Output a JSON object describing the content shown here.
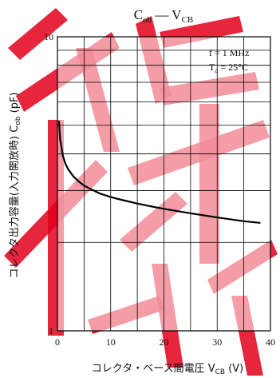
{
  "chart_data": {
    "type": "line",
    "title": {
      "main": "C",
      "main_sub": "ob",
      "sep": " — ",
      "second": "V",
      "second_sub": "CB"
    },
    "xlabel": {
      "text": "コレクタ・ベース間電圧  V",
      "sub": "CB",
      "unit": "  (V)"
    },
    "ylabel": {
      "text": "コレクタ出力容量(入力開放時)  C",
      "sub": "ob",
      "unit": "  (pF)"
    },
    "x_ticks": [
      "0",
      "10",
      "20",
      "30",
      "40"
    ],
    "y_ticks": [
      "1",
      "10"
    ],
    "xlim": [
      0,
      40
    ],
    "ylim": [
      1,
      10
    ],
    "y_scale": "log",
    "grid": true,
    "annotations": [
      {
        "text": "f = 1 MHz"
      },
      {
        "text": "T",
        "sub": "a",
        "tail": " = 25°C"
      }
    ],
    "series": [
      {
        "x": [
          0.3,
          0.5,
          1,
          1.5,
          2,
          3,
          4,
          5,
          6,
          8,
          10,
          12,
          15,
          18,
          20,
          25,
          30,
          35,
          38
        ],
        "y": [
          5.15,
          4.5,
          3.95,
          3.7,
          3.55,
          3.35,
          3.22,
          3.12,
          3.05,
          2.93,
          2.85,
          2.79,
          2.71,
          2.64,
          2.6,
          2.51,
          2.43,
          2.36,
          2.33
        ]
      }
    ]
  },
  "colors": {
    "line": "#000000",
    "grid": "#000000",
    "watermark": "#e2001a"
  }
}
